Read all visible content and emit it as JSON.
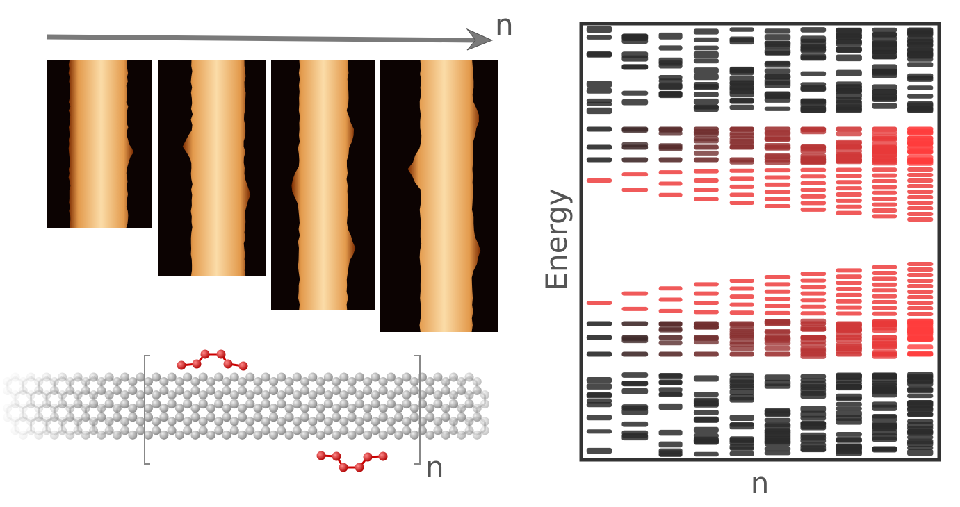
{
  "top_arrow_label": "n",
  "structure": {
    "repeat_label": "n"
  },
  "energy_diagram": {
    "y_label": "Energy",
    "x_label": "n"
  }
}
